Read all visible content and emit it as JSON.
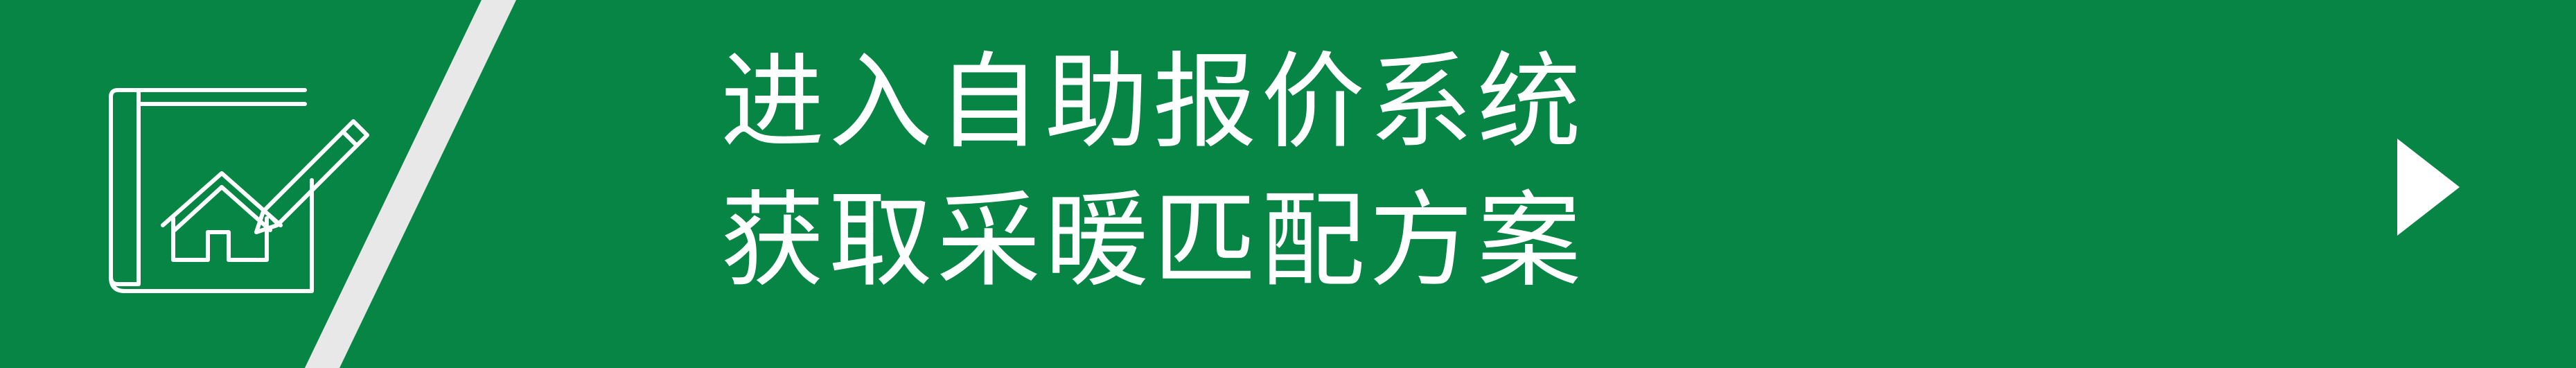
{
  "banner": {
    "line1": "进入自助报价系统",
    "line2": "获取采暖匹配方案",
    "background_color": "#068545",
    "stripe_color": "#e8e8e8",
    "text_color": "#ffffff"
  },
  "icons": {
    "blueprint": "house-blueprint-pencil-icon",
    "arrow": "play-arrow-icon"
  }
}
